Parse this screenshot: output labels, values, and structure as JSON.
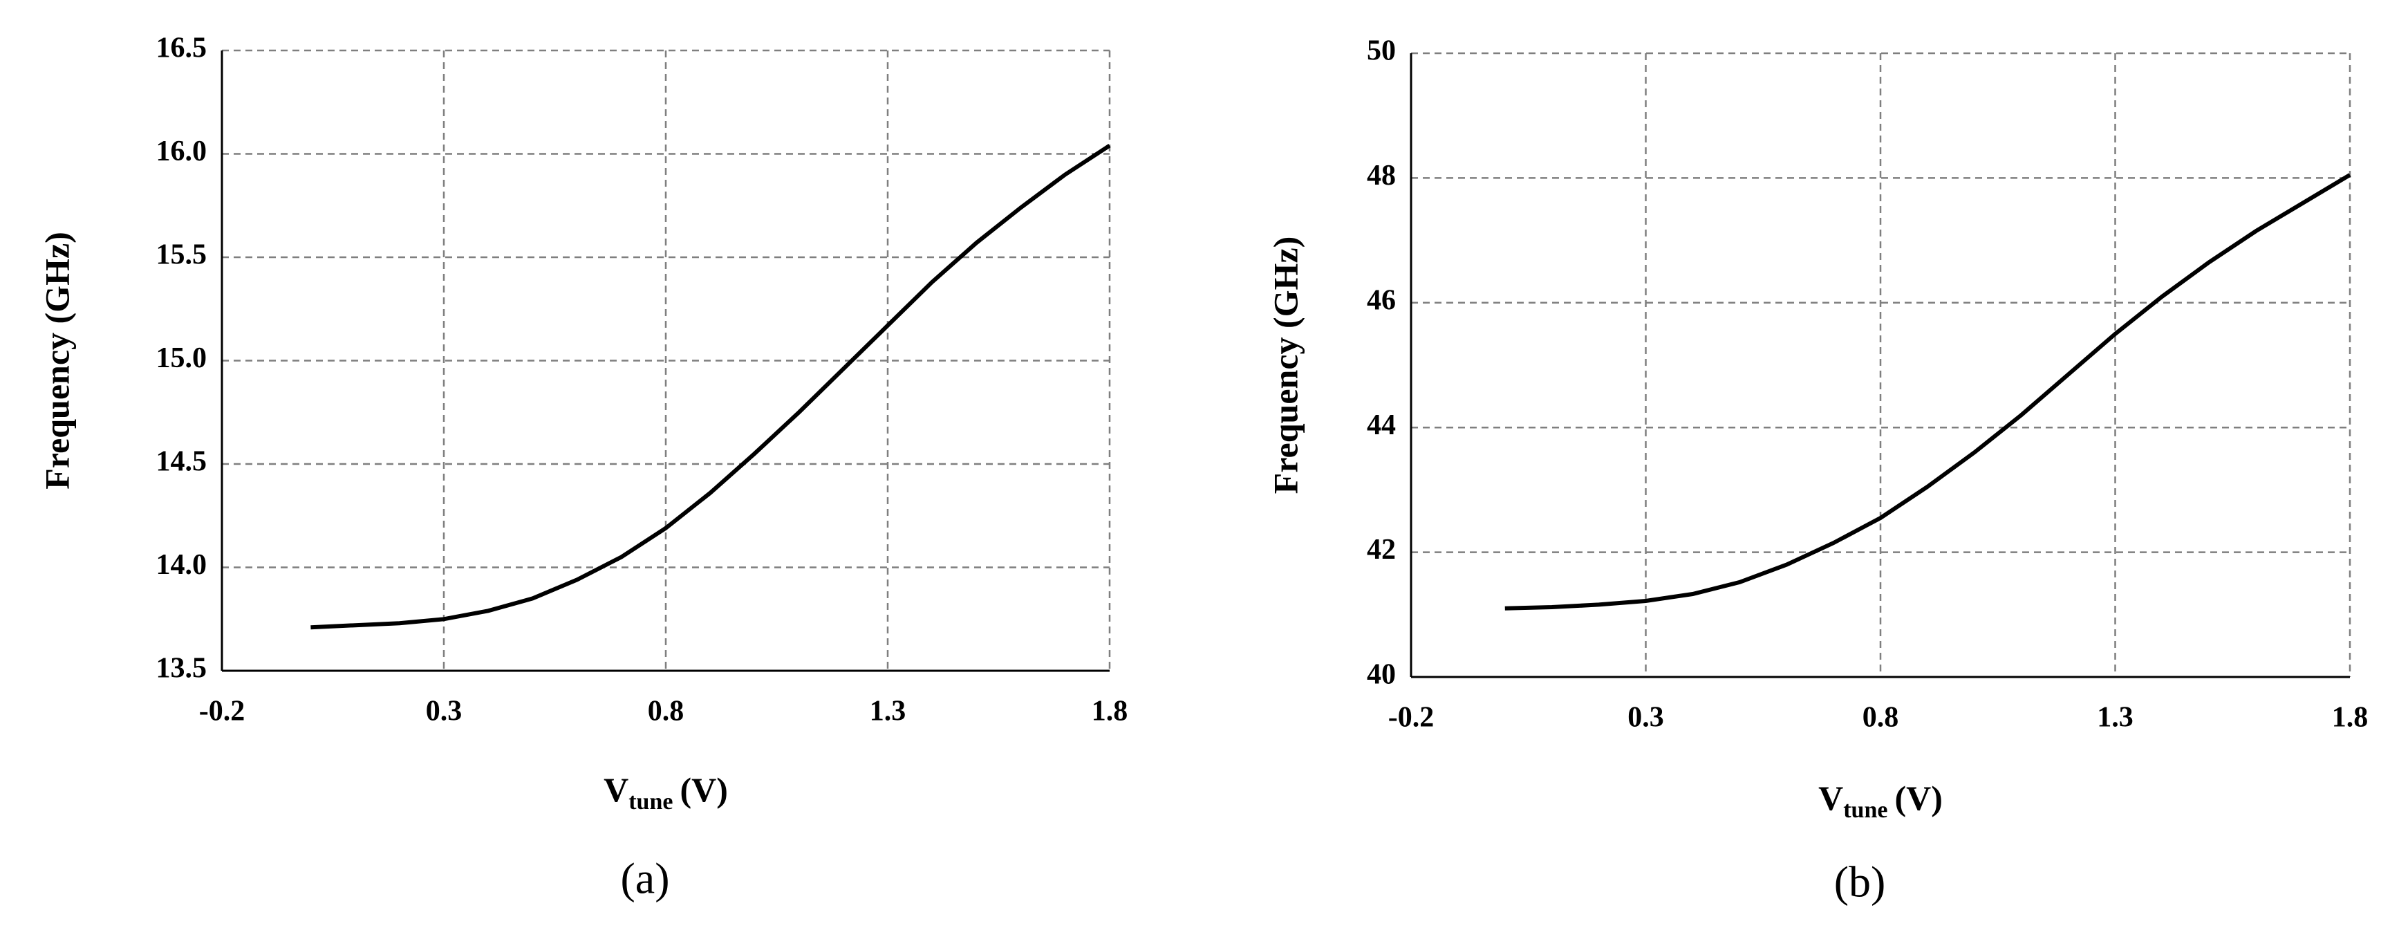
{
  "chart_data": [
    {
      "type": "line",
      "panel_label": "(a)",
      "ylabel": "Frequency (GHz)",
      "xlabel": "V",
      "xlabel_sub": "tune",
      "xlabel_unit": "(V)",
      "x": [
        0,
        0.1,
        0.2,
        0.3,
        0.4,
        0.5,
        0.6,
        0.7,
        0.8,
        0.9,
        1.0,
        1.1,
        1.2,
        1.3,
        1.4,
        1.5,
        1.6,
        1.7,
        1.8
      ],
      "values": [
        13.71,
        13.72,
        13.73,
        13.75,
        13.79,
        13.85,
        13.94,
        14.05,
        14.19,
        14.36,
        14.55,
        14.75,
        14.96,
        15.17,
        15.38,
        15.57,
        15.74,
        15.9,
        16.04
      ],
      "color": "#000000",
      "xlim": [
        -0.2,
        1.8
      ],
      "xticks": [
        -0.2,
        0.3,
        0.8,
        1.3,
        1.8
      ],
      "ylim": [
        13.5,
        16.5
      ],
      "yticks": [
        13.5,
        {
          "value": 14,
          "label": "14.0"
        },
        14.5,
        {
          "value": 15,
          "label": "15.0"
        },
        15.5,
        {
          "value": 16,
          "label": "16.0"
        },
        16.5
      ],
      "grid": true
    },
    {
      "type": "line",
      "panel_label": "(b)",
      "ylabel": "Frequency (GHz)",
      "xlabel": "V",
      "xlabel_sub": "tune",
      "xlabel_unit": "(V)",
      "x": [
        0,
        0.1,
        0.2,
        0.3,
        0.4,
        0.5,
        0.6,
        0.7,
        0.8,
        0.9,
        1.0,
        1.1,
        1.2,
        1.3,
        1.4,
        1.5,
        1.6,
        1.7,
        1.8
      ],
      "values": [
        41.1,
        41.12,
        41.16,
        41.22,
        41.33,
        41.52,
        41.8,
        42.15,
        42.55,
        43.05,
        43.6,
        44.2,
        44.85,
        45.5,
        46.1,
        46.65,
        47.15,
        47.6,
        48.05
      ],
      "color": "#000000",
      "xlim": [
        -0.2,
        1.8
      ],
      "xticks": [
        -0.2,
        0.3,
        0.8,
        1.3,
        1.8
      ],
      "ylim": [
        40,
        50
      ],
      "yticks": [
        40,
        42,
        44,
        46,
        48,
        50
      ],
      "grid": true
    }
  ]
}
